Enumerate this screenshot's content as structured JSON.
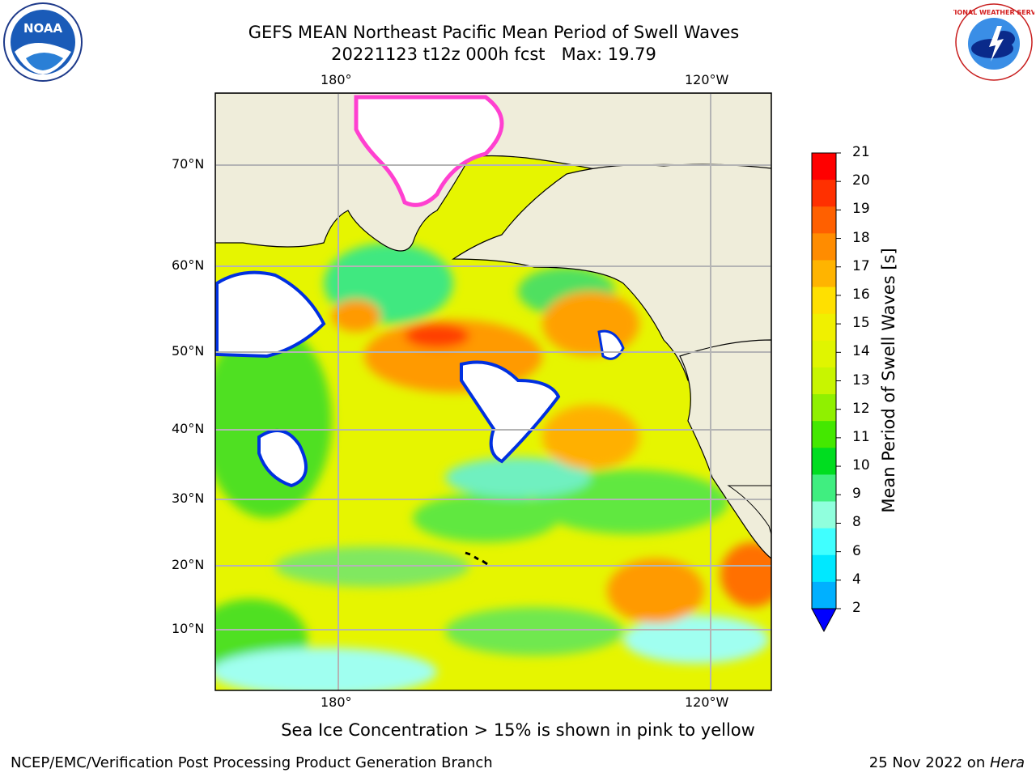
{
  "title": {
    "line1": "GEFS MEAN Northeast Pacific Mean Period of Swell Waves",
    "line2": "20221123 t12z 000h fcst   Max: 19.79"
  },
  "map": {
    "lon_labels_top": [
      "180°",
      "120°W"
    ],
    "lon_labels_bottom": [
      "180°",
      "120°W"
    ],
    "lat_labels": [
      "70°N",
      "60°N",
      "50°N",
      "40°N",
      "30°N",
      "20°N",
      "10°N"
    ],
    "land_color": "#efedda",
    "ocean_base_color": "#e6f500"
  },
  "colorbar": {
    "label": "Mean Period of Swell Waves [s]",
    "ticks": [
      "21",
      "20",
      "19",
      "18",
      "17",
      "16",
      "15",
      "14",
      "13",
      "12",
      "11",
      "10",
      "9",
      "8",
      "6",
      "4",
      "2"
    ],
    "colors": [
      "#ff0000",
      "#ff3000",
      "#ff6000",
      "#ff8c00",
      "#ffb400",
      "#ffe000",
      "#f0f000",
      "#e0f500",
      "#c8f500",
      "#90f000",
      "#44e800",
      "#00dd20",
      "#40ee80",
      "#90ffdd",
      "#40ffff",
      "#00e8ff",
      "#00b0ff",
      "#0070ff"
    ]
  },
  "caption": "Sea Ice Concentration > 15% is shown in pink to yellow",
  "footer": {
    "left": "NCEP/EMC/Verification Post Processing Product Generation Branch",
    "right_date": "25 Nov 2022 on ",
    "right_host": "Hera"
  },
  "logos": {
    "noaa_text": "NOAA",
    "nws_text": "NATIONAL WEATHER SERVICE"
  }
}
